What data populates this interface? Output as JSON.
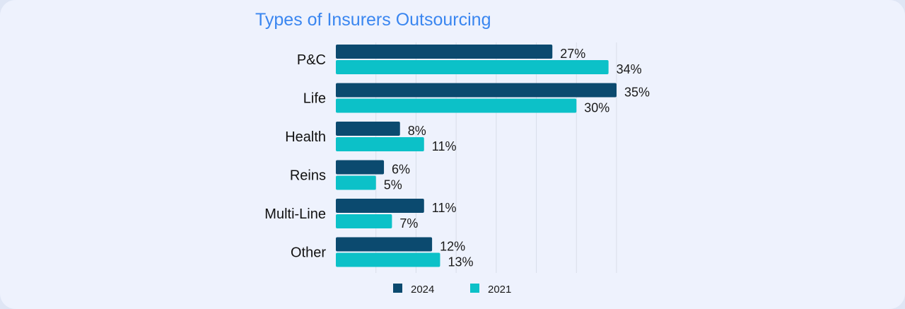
{
  "chart_data": {
    "type": "bar",
    "orientation": "horizontal",
    "title": "Types of Insurers Outsourcing",
    "categories": [
      "P&C",
      "Life",
      "Health",
      "Reins",
      "Multi-Line",
      "Other"
    ],
    "series": [
      {
        "name": "2024",
        "color": "#0b4a6f",
        "values": [
          27,
          35,
          8,
          6,
          11,
          12
        ]
      },
      {
        "name": "2021",
        "color": "#0cc1c8",
        "values": [
          34,
          30,
          11,
          5,
          7,
          13
        ]
      }
    ],
    "value_suffix": "%",
    "xlim": [
      0,
      35
    ],
    "grid": true,
    "legend_position": "bottom"
  }
}
